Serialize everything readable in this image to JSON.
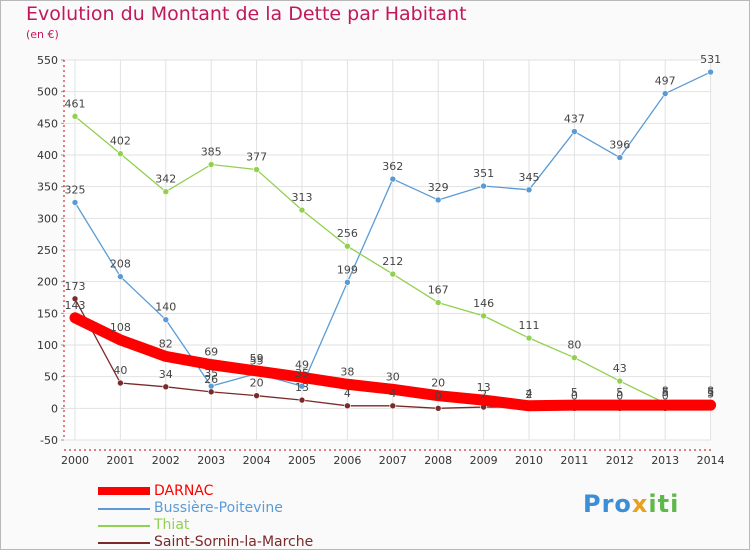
{
  "header": {
    "title": "Evolution du Montant de la Dette par Habitant",
    "subtitle": "(en €)"
  },
  "logo": {
    "part1": "Pro",
    "part2": "x",
    "part3": "iti"
  },
  "colors": {
    "title": "#c2185b",
    "darnac": "#ff0000",
    "bussiere": "#5b9bd5",
    "thiat": "#92d050",
    "saint_sornin": "#7b2a2a",
    "grid": "#e2e2e2",
    "axis": "#cc0000"
  },
  "chart_data": {
    "type": "line",
    "title": "Evolution du Montant de la Dette par Habitant",
    "ylabel": "(en €)",
    "xlabel": "",
    "x": [
      "2000",
      "2001",
      "2002",
      "2003",
      "2004",
      "2005",
      "2006",
      "2007",
      "2008",
      "2009",
      "2010",
      "2011",
      "2012",
      "2013",
      "2014"
    ],
    "ylim": [
      -50,
      550
    ],
    "yticks": [
      -50,
      0,
      50,
      100,
      150,
      200,
      250,
      300,
      350,
      400,
      450,
      500,
      550
    ],
    "grid": true,
    "legend_position": "bottom-left",
    "series": [
      {
        "name": "DARNAC",
        "color": "#ff0000",
        "values": [
          143,
          108,
          82,
          69,
          59,
          49,
          38,
          30,
          20,
          13,
          4,
          5,
          5,
          5,
          5
        ]
      },
      {
        "name": "Bussière-Poitevine",
        "color": "#5b9bd5",
        "values": [
          325,
          208,
          140,
          35,
          55,
          35,
          199,
          362,
          329,
          351,
          345,
          437,
          396,
          497,
          531
        ]
      },
      {
        "name": "Thiat",
        "color": "#92d050",
        "values": [
          461,
          402,
          342,
          385,
          377,
          313,
          256,
          212,
          167,
          146,
          111,
          80,
          43,
          8,
          8
        ]
      },
      {
        "name": "Saint-Sornin-la-Marche",
        "color": "#7b2a2a",
        "values": [
          173,
          40,
          34,
          26,
          20,
          13,
          4,
          4,
          0,
          2,
          2,
          0,
          0,
          0,
          3
        ]
      }
    ]
  }
}
